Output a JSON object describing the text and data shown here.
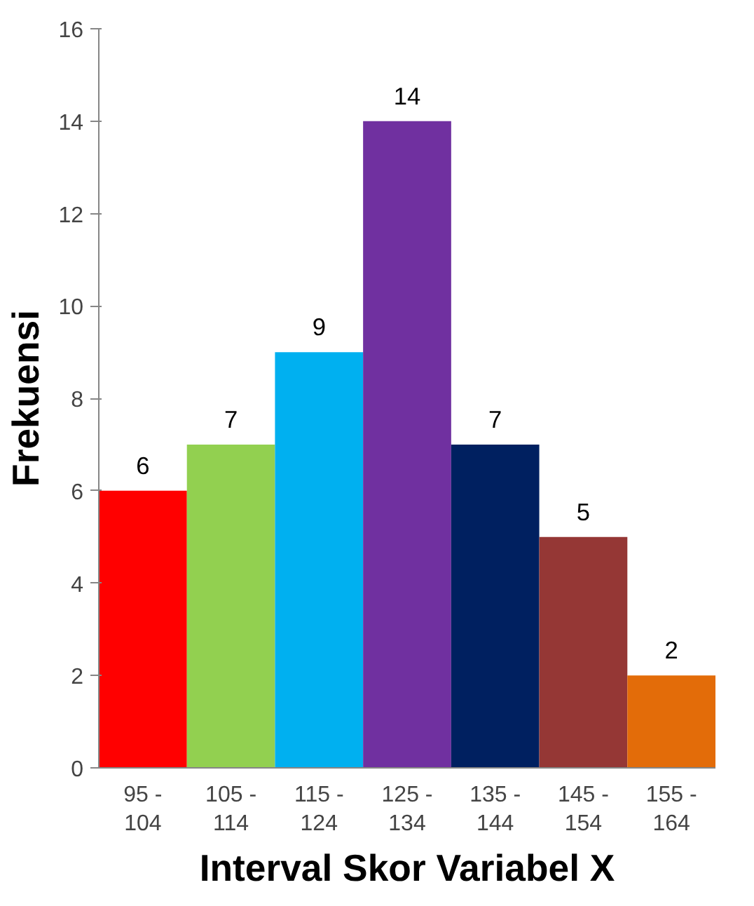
{
  "chart_data": {
    "type": "bar",
    "xlabel": "Interval Skor Variabel X",
    "ylabel": "Frekuensi",
    "categories": [
      "95 - 104",
      "105 - 114",
      "115 - 124",
      "125 - 134",
      "135 - 144",
      "145 - 154",
      "155 - 164"
    ],
    "values": [
      6,
      7,
      9,
      14,
      7,
      5,
      2
    ],
    "colors": [
      "#ff0000",
      "#92d050",
      "#00b0f0",
      "#7030a0",
      "#002060",
      "#953735",
      "#e36c09"
    ],
    "ylim": [
      0,
      16
    ],
    "yticks": [
      0,
      2,
      4,
      6,
      8,
      10,
      12,
      14,
      16
    ],
    "data_labels": true,
    "grid": false
  }
}
